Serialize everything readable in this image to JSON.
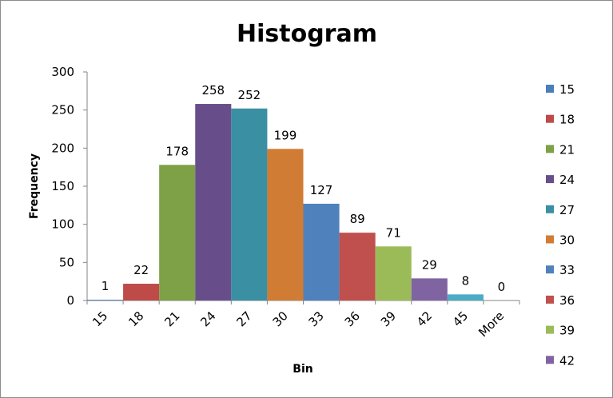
{
  "chart_data": {
    "type": "bar",
    "title": "Histogram",
    "xlabel": "Bin",
    "ylabel": "Frequency",
    "categories": [
      "15",
      "18",
      "21",
      "24",
      "27",
      "30",
      "33",
      "36",
      "39",
      "42",
      "45",
      "More"
    ],
    "values": [
      1,
      22,
      178,
      258,
      252,
      199,
      127,
      89,
      71,
      29,
      8,
      0
    ],
    "colors": [
      "#4a7ebb",
      "#be4b48",
      "#7ea046",
      "#674e8a",
      "#3a8fa3",
      "#d17c34",
      "#4f81bd",
      "#c0504d",
      "#9bbb59",
      "#8064a2",
      "#4bacc6",
      "#f79646"
    ],
    "ylim": [
      0,
      300
    ],
    "yticks": [
      0,
      50,
      100,
      150,
      200,
      250,
      300
    ],
    "grid": false,
    "legend_position": "right",
    "legend": [
      "15",
      "18",
      "21",
      "24",
      "27",
      "30",
      "33",
      "36",
      "39",
      "42"
    ]
  }
}
